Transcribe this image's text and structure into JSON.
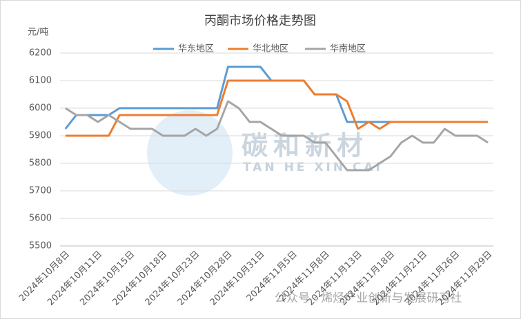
{
  "chart_data": {
    "type": "line",
    "title": "丙酮市场价格走势图",
    "y_label": "元/吨",
    "annotations": [
      "碳和新材",
      "TAN HE XIN CAI",
      "公众号 · 烯烃产业创新与发展研习社"
    ],
    "categories": [
      "2024年10月8日",
      null,
      null,
      "2024年10月11日",
      null,
      null,
      "2024年10月15日",
      null,
      null,
      "2024年10月18日",
      null,
      null,
      "2024年10月23日",
      null,
      null,
      "2024年10月28日",
      null,
      null,
      "2024年10月31日",
      null,
      null,
      "2024年11月5日",
      null,
      null,
      "2024年11月8日",
      null,
      null,
      "2024年11月13日",
      null,
      null,
      "2024年11月18日",
      null,
      null,
      "2024年11月21日",
      null,
      null,
      "2024年11月26日",
      null,
      null,
      "2024年11月29日"
    ],
    "series": [
      {
        "name": "华东地区",
        "color": "#5b9bd5",
        "values": [
          5925,
          5975,
          5975,
          5975,
          5975,
          6000,
          6000,
          6000,
          6000,
          6000,
          6000,
          6000,
          6000,
          6000,
          6000,
          6150,
          6150,
          6150,
          6150,
          6100,
          6100,
          6100,
          6100,
          6050,
          6050,
          6050,
          5950,
          5950,
          5950,
          5950,
          5950,
          5950,
          5950,
          5950,
          5950,
          5950,
          5950,
          5950,
          5950,
          5950
        ]
      },
      {
        "name": "华北地区",
        "color": "#ed7d31",
        "values": [
          5900,
          5900,
          5900,
          5900,
          5900,
          5975,
          5975,
          5975,
          5975,
          5975,
          5975,
          5975,
          5975,
          5975,
          5975,
          6100,
          6100,
          6100,
          6100,
          6100,
          6100,
          6100,
          6100,
          6050,
          6050,
          6050,
          6025,
          5925,
          5950,
          5925,
          5950,
          5950,
          5950,
          5950,
          5950,
          5950,
          5950,
          5950,
          5950,
          5950
        ]
      },
      {
        "name": "华南地区",
        "color": "#a5a5a5",
        "values": [
          6000,
          5975,
          5975,
          5950,
          5975,
          5950,
          5925,
          5925,
          5925,
          5900,
          5900,
          5900,
          5925,
          5900,
          5925,
          6025,
          6000,
          5950,
          5950,
          5925,
          5900,
          5900,
          5900,
          5875,
          5875,
          5825,
          5775,
          5775,
          5775,
          5800,
          5825,
          5875,
          5900,
          5875,
          5875,
          5925,
          5900,
          5900,
          5900,
          5875
        ]
      }
    ],
    "ylim": [
      5500,
      6200
    ],
    "yticks": [
      5500,
      5600,
      5700,
      5800,
      5900,
      6000,
      6100,
      6200
    ],
    "grid": true,
    "legend": "top"
  }
}
